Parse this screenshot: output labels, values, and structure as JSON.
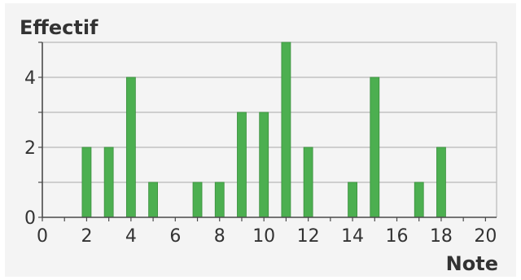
{
  "chart_data": {
    "type": "bar",
    "title": "",
    "ylabel": "Effectif",
    "xlabel": "Note",
    "xlim": [
      0,
      20.5
    ],
    "ylim": [
      0,
      5
    ],
    "x_ticks": [
      0,
      2,
      4,
      6,
      8,
      10,
      12,
      14,
      16,
      18,
      20
    ],
    "y_ticks": [
      0,
      2,
      4
    ],
    "grid_y_lines": [
      1,
      2,
      3,
      4
    ],
    "grid": true,
    "bar_color": "#4caf50",
    "x": [
      2,
      3,
      4,
      5,
      7,
      8,
      9,
      10,
      11,
      12,
      14,
      15,
      17,
      18
    ],
    "values": [
      2,
      2,
      4,
      1,
      1,
      1,
      3,
      3,
      5,
      2,
      1,
      4,
      1,
      2
    ]
  }
}
